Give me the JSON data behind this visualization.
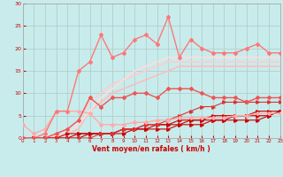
{
  "xlabel": "Vent moyen/en rafales ( km/h )",
  "xlim": [
    0,
    23
  ],
  "ylim": [
    0,
    30
  ],
  "xticks": [
    0,
    1,
    2,
    3,
    4,
    5,
    6,
    7,
    8,
    9,
    10,
    11,
    12,
    13,
    14,
    15,
    16,
    17,
    18,
    19,
    20,
    21,
    22,
    23
  ],
  "yticks": [
    0,
    5,
    10,
    15,
    20,
    25,
    30
  ],
  "bg_color": "#c8ecec",
  "grid_color": "#b0c8c8",
  "lines": [
    {
      "x": [
        0,
        1,
        2,
        3,
        4,
        5,
        6,
        7,
        8,
        9,
        10,
        11,
        12,
        13,
        14,
        15,
        16,
        17,
        18,
        19,
        20,
        21,
        22,
        23
      ],
      "y": [
        3.0,
        1.0,
        2.0,
        6.0,
        6.0,
        6.0,
        5.5,
        3.0,
        3.0,
        3.0,
        3.5,
        3.5,
        4.0,
        4.0,
        4.5,
        4.5,
        4.5,
        4.5,
        4.5,
        5.0,
        5.0,
        5.5,
        5.5,
        5.5
      ],
      "color": "#ffaaaa",
      "lw": 1.0,
      "marker": "D",
      "ms": 2.0,
      "zorder": 5
    },
    {
      "x": [
        0,
        1,
        2,
        3,
        4,
        5,
        6,
        7,
        8,
        9,
        10,
        11,
        12,
        13,
        14,
        15,
        16,
        17,
        18,
        19,
        20,
        21,
        22,
        23
      ],
      "y": [
        0,
        0,
        1,
        6,
        6,
        15,
        17,
        23,
        18,
        19,
        22,
        23,
        21,
        27,
        18,
        22,
        20,
        19,
        19,
        19,
        20,
        21,
        19,
        19
      ],
      "color": "#ff7777",
      "lw": 1.0,
      "marker": "D",
      "ms": 2.0,
      "zorder": 5
    },
    {
      "x": [
        0,
        1,
        2,
        3,
        4,
        5,
        6,
        7,
        8,
        9,
        10,
        11,
        12,
        13,
        14,
        15,
        16,
        17,
        18,
        19,
        20,
        21,
        22,
        23
      ],
      "y": [
        0,
        0,
        0,
        1,
        2,
        4,
        9,
        7,
        9,
        9,
        10,
        10,
        9,
        11,
        11,
        11,
        10,
        9,
        9,
        9,
        8,
        9,
        9,
        9
      ],
      "color": "#ee5555",
      "lw": 1.0,
      "marker": "D",
      "ms": 2.0,
      "zorder": 5
    },
    {
      "x": [
        0,
        1,
        2,
        3,
        4,
        5,
        6,
        7,
        8,
        9,
        10,
        11,
        12,
        13,
        14,
        15,
        16,
        17,
        18,
        19,
        20,
        21,
        22,
        23
      ],
      "y": [
        0,
        0,
        0,
        0.5,
        1,
        2,
        6,
        8,
        10,
        11,
        12,
        13,
        14,
        15,
        16,
        16,
        16,
        16,
        16,
        16,
        16,
        16,
        16,
        16
      ],
      "color": "#ffbbbb",
      "lw": 1.2,
      "marker": null,
      "ms": 0,
      "zorder": 3
    },
    {
      "x": [
        0,
        1,
        2,
        3,
        4,
        5,
        6,
        7,
        8,
        9,
        10,
        11,
        12,
        13,
        14,
        15,
        16,
        17,
        18,
        19,
        20,
        21,
        22,
        23
      ],
      "y": [
        0,
        0,
        0,
        1,
        2,
        4,
        8,
        10,
        12,
        13,
        14,
        15,
        16,
        17,
        17,
        17,
        17,
        17,
        17,
        17,
        17,
        17,
        17,
        17
      ],
      "color": "#ffcccc",
      "lw": 1.2,
      "marker": null,
      "ms": 0,
      "zorder": 3
    },
    {
      "x": [
        0,
        1,
        2,
        3,
        4,
        5,
        6,
        7,
        8,
        9,
        10,
        11,
        12,
        13,
        14,
        15,
        16,
        17,
        18,
        19,
        20,
        21,
        22,
        23
      ],
      "y": [
        0,
        0,
        0,
        0.5,
        1,
        3,
        6,
        9,
        11,
        13,
        15,
        16,
        17,
        18,
        18,
        18,
        18,
        18,
        18,
        18,
        18,
        18,
        18,
        18
      ],
      "color": "#ffdddd",
      "lw": 1.2,
      "marker": null,
      "ms": 0,
      "zorder": 3
    },
    {
      "x": [
        0,
        1,
        2,
        3,
        4,
        5,
        6,
        7,
        8,
        9,
        10,
        11,
        12,
        13,
        14,
        15,
        16,
        17,
        18,
        19,
        20,
        21,
        22,
        23
      ],
      "y": [
        0,
        0,
        0,
        0,
        1,
        1,
        1,
        1,
        1,
        2,
        2,
        3,
        3,
        3,
        4,
        4,
        4,
        5,
        5,
        5,
        5,
        6,
        6,
        6
      ],
      "color": "#cc0000",
      "lw": 0.8,
      "marker": ">",
      "ms": 2.5,
      "zorder": 4
    },
    {
      "x": [
        0,
        1,
        2,
        3,
        4,
        5,
        6,
        7,
        8,
        9,
        10,
        11,
        12,
        13,
        14,
        15,
        16,
        17,
        18,
        19,
        20,
        21,
        22,
        23
      ],
      "y": [
        0,
        0,
        0,
        0,
        0,
        1,
        1,
        1,
        1,
        2,
        2,
        2,
        3,
        3,
        3,
        4,
        4,
        4,
        4,
        5,
        5,
        5,
        5,
        6
      ],
      "color": "#cc0000",
      "lw": 0.8,
      "marker": ">",
      "ms": 2.5,
      "zorder": 4
    },
    {
      "x": [
        0,
        1,
        2,
        3,
        4,
        5,
        6,
        7,
        8,
        9,
        10,
        11,
        12,
        13,
        14,
        15,
        16,
        17,
        18,
        19,
        20,
        21,
        22,
        23
      ],
      "y": [
        0,
        0,
        0,
        0,
        0,
        0,
        1,
        1,
        1,
        1,
        2,
        2,
        2,
        2,
        3,
        3,
        3,
        4,
        4,
        4,
        4,
        4,
        5,
        6
      ],
      "color": "#cc0000",
      "lw": 0.8,
      "marker": ">",
      "ms": 2.5,
      "zorder": 4
    },
    {
      "x": [
        0,
        1,
        2,
        3,
        4,
        5,
        6,
        7,
        8,
        9,
        10,
        11,
        12,
        13,
        14,
        15,
        16,
        17,
        18,
        19,
        20,
        21,
        22,
        23
      ],
      "y": [
        0,
        0,
        0,
        0,
        0,
        0,
        0,
        1,
        1,
        2,
        2,
        3,
        3,
        4,
        5,
        6,
        7,
        7,
        8,
        8,
        8,
        8,
        8,
        8
      ],
      "color": "#dd3333",
      "lw": 0.8,
      "marker": ">",
      "ms": 2.5,
      "zorder": 4
    }
  ]
}
